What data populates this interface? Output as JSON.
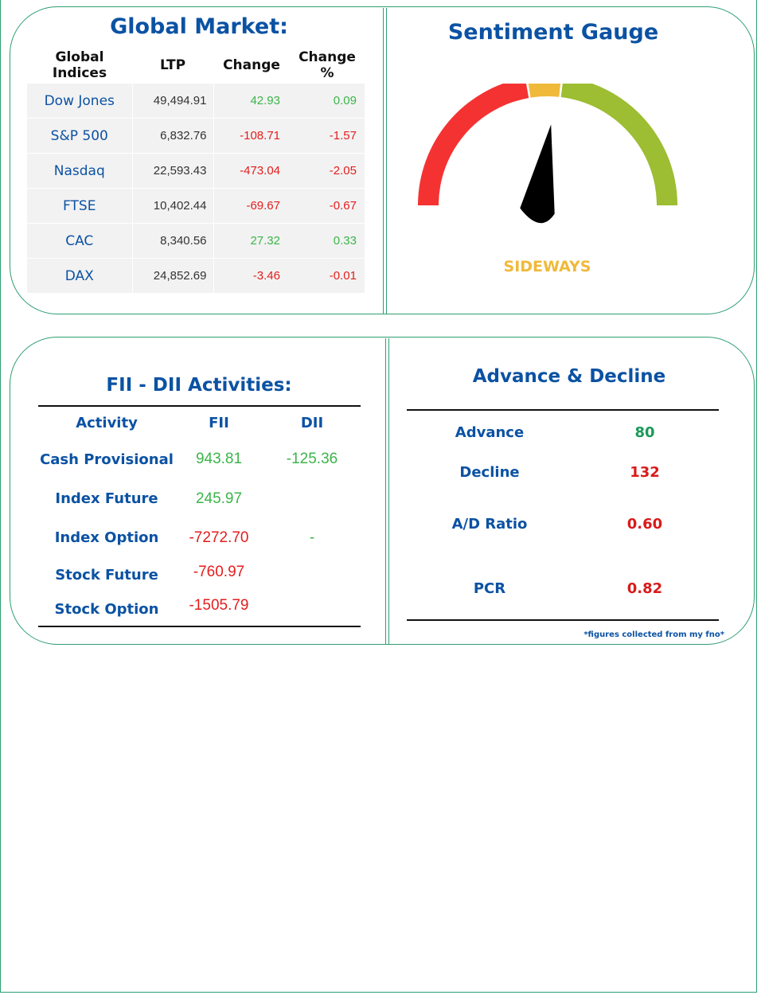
{
  "global_market": {
    "title": "Global Market:",
    "headers": [
      "Global Indices",
      "LTP",
      "Change",
      "Change %"
    ],
    "rows": [
      {
        "name": "Dow Jones",
        "ltp": "49,494.91",
        "change": "42.93",
        "pct": "0.09",
        "dir": "pos"
      },
      {
        "name": "S&P 500",
        "ltp": "6,832.76",
        "change": "-108.71",
        "pct": "-1.57",
        "dir": "neg"
      },
      {
        "name": "Nasdaq",
        "ltp": "22,593.43",
        "change": "-473.04",
        "pct": "-2.05",
        "dir": "neg"
      },
      {
        "name": "FTSE",
        "ltp": "10,402.44",
        "change": "-69.67",
        "pct": "-0.67",
        "dir": "neg"
      },
      {
        "name": "CAC",
        "ltp": "8,340.56",
        "change": "27.32",
        "pct": "0.33",
        "dir": "pos"
      },
      {
        "name": "DAX",
        "ltp": "24,852.69",
        "change": "-3.46",
        "pct": "-0.01",
        "dir": "neg"
      }
    ]
  },
  "sentiment": {
    "title": "Sentiment Gauge",
    "label": "SIDEWAYS",
    "needle_fraction": 0.55,
    "colors": {
      "bearish": "#f53232",
      "neutral": "#f0b93a",
      "bullish": "#9dbd33",
      "needle": "#000000"
    }
  },
  "fii_dii": {
    "title": "FII - DII Activities:",
    "headers": [
      "Activity",
      "FII",
      "DII"
    ],
    "rows": [
      {
        "activity": "Cash Provisional",
        "fii": "943.81",
        "fii_dir": "pos",
        "dii": "-125.36",
        "dii_dir": "pos"
      },
      {
        "activity": "Index Future",
        "fii": "245.97",
        "fii_dir": "pos",
        "dii": "",
        "dii_dir": "pos"
      },
      {
        "activity": "Index Option",
        "fii": "-7272.70",
        "fii_dir": "neg",
        "dii": "-",
        "dii_dir": "pos"
      },
      {
        "activity": "Stock Future",
        "fii": "-760.97",
        "fii_dir": "neg",
        "dii": "",
        "dii_dir": "pos"
      },
      {
        "activity": "Stock Option",
        "fii": "-1505.79",
        "fii_dir": "neg",
        "dii": "",
        "dii_dir": "pos"
      }
    ]
  },
  "advance_decline": {
    "title": "Advance & Decline",
    "rows": [
      {
        "label": "Advance",
        "value": "80",
        "color": "#1a9a5a"
      },
      {
        "label": "Decline",
        "value": "132",
        "color": "#d81b1b"
      },
      {
        "label": "A/D Ratio",
        "value": "0.60",
        "color": "#d81b1b"
      },
      {
        "label": "PCR",
        "value": "0.82",
        "color": "#d81b1b"
      }
    ],
    "footnote": "*figures collected from my fno*"
  }
}
